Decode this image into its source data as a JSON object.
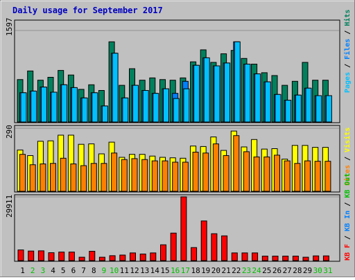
{
  "chart_data": {
    "title": "Daily usage for September 2017",
    "colors": {
      "background": "#c0c0c0",
      "plot_bg": "#c0c0c0",
      "title": "#0000c0",
      "hits": "#00805c",
      "files": "#00c0ff",
      "pages": "#00c0ff",
      "visits": "#ffff00",
      "sites": "#ff8000",
      "kbin": "#0080ff",
      "kbout": "#00c000",
      "kbf": "#ff0000",
      "weekend_tick": "#00c000",
      "weekday_tick": "#000000"
    },
    "x_labels": [
      "1",
      "2",
      "3",
      "4",
      "5",
      "6",
      "7",
      "8",
      "9",
      "10",
      "11",
      "12",
      "13",
      "14",
      "15",
      "16",
      "17",
      "18",
      "19",
      "20",
      "21",
      "22",
      "23",
      "24",
      "25",
      "26",
      "27",
      "28",
      "29",
      "30",
      "31"
    ],
    "weekend_days": [
      2,
      3,
      9,
      10,
      16,
      17,
      23,
      24,
      30,
      31
    ],
    "panels": [
      {
        "name": "hits-files-pages",
        "type": "bar",
        "ymax_label": "1597",
        "ylim": [
          0,
          1597
        ],
        "side_label": [
          {
            "text": "Pages",
            "color": "#00c0ff"
          },
          {
            "text": " / ",
            "color": "#000000"
          },
          {
            "text": "Files",
            "color": "#0080ff"
          },
          {
            "text": " / ",
            "color": "#000000"
          },
          {
            "text": "Hits",
            "color": "#00805c"
          }
        ],
        "series": [
          {
            "name": "Hits",
            "color": "#00805c",
            "values": [
              740,
              890,
              730,
              780,
              900,
              820,
              570,
              650,
              550,
              1400,
              640,
              930,
              730,
              770,
              740,
              730,
              770,
              1050,
              1260,
              1040,
              1190,
              1250,
              1110,
              1010,
              860,
              810,
              640,
              710,
              1040,
              730,
              730
            ]
          },
          {
            "name": "Files",
            "color": "#0080ff",
            "values": [
              510,
              540,
              610,
              520,
              650,
              600,
              420,
              510,
              280,
              1200,
              420,
              640,
              550,
              500,
              580,
              500,
              710,
              990,
              1120,
              980,
              1030,
              1400,
              1010,
              840,
              700,
              480,
              380,
              470,
              590,
              460,
              460
            ]
          },
          {
            "name": "Pages",
            "color": "#00c0ff",
            "values": [
              510,
              540,
              610,
              520,
              650,
              600,
              420,
              510,
              280,
              1200,
              420,
              640,
              550,
              500,
              580,
              410,
              580,
              990,
              1120,
              980,
              1030,
              1400,
              1010,
              840,
              700,
              480,
              380,
              470,
              590,
              460,
              460
            ]
          }
        ]
      },
      {
        "name": "visits-sites",
        "type": "bar",
        "ymax_label": "290",
        "ylim": [
          0,
          290
        ],
        "side_label": [
          {
            "text": "Sites",
            "color": "#ff8000"
          },
          {
            "text": " / ",
            "color": "#000000"
          },
          {
            "text": "Visits",
            "color": "#ffff00"
          }
        ],
        "series": [
          {
            "name": "Visits",
            "color": "#ffff00",
            "values": [
              190,
              164,
              230,
              232,
              258,
              258,
              216,
              218,
              172,
              226,
              156,
              170,
              170,
              162,
              156,
              154,
              152,
              208,
              206,
              250,
              188,
              277,
              204,
              238,
              194,
              196,
              148,
              211,
              211,
              202,
              202
            ]
          },
          {
            "name": "Sites",
            "color": "#ff8000",
            "values": [
              170,
              122,
              126,
              128,
              152,
              126,
              118,
              128,
              128,
              176,
              146,
              150,
              146,
              140,
              140,
              134,
              134,
              180,
              176,
              218,
              164,
              256,
              182,
              158,
              158,
              166,
              140,
              128,
              140,
              138,
              138
            ]
          }
        ]
      },
      {
        "name": "kbytes",
        "type": "bar",
        "ymax_label": "29911",
        "ylim": [
          0,
          29911
        ],
        "side_label": [
          {
            "text": "KB F",
            "color": "#ff0000"
          },
          {
            "text": " / ",
            "color": "#000000"
          },
          {
            "text": "KB In",
            "color": "#0080ff"
          },
          {
            "text": " / ",
            "color": "#000000"
          },
          {
            "text": "KB Out",
            "color": "#00c000"
          }
        ],
        "series": [
          {
            "name": "KB F",
            "color": "#ff0000",
            "values": [
              5000,
              4500,
              4600,
              3700,
              4000,
              4000,
              1600,
              4400,
              1600,
              2300,
              2600,
              3600,
              3100,
              3600,
              7400,
              12900,
              29911,
              6100,
              18600,
              12600,
              11600,
              3600,
              3600,
              3600,
              2100,
              2100,
              2100,
              2100,
              1600,
              2200,
              2200
            ]
          }
        ]
      }
    ]
  }
}
